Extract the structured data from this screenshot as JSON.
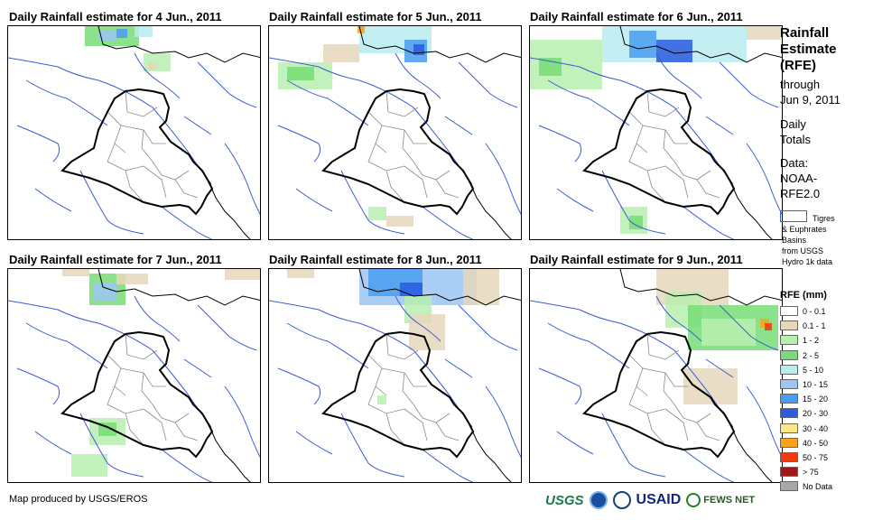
{
  "panels": [
    {
      "title": "Daily Rainfall estimate for 4 Jun., 2011"
    },
    {
      "title": "Daily Rainfall estimate for 5 Jun., 2011"
    },
    {
      "title": "Daily Rainfall estimate for 6 Jun., 2011"
    },
    {
      "title": "Daily Rainfall estimate for 7 Jun., 2011"
    },
    {
      "title": "Daily Rainfall estimate for 8 Jun., 2011"
    },
    {
      "title": "Daily Rainfall estimate for 9 Jun., 2011"
    }
  ],
  "sidebar": {
    "title_lines": [
      "Rainfall",
      "Estimate",
      "(RFE)"
    ],
    "through": "through",
    "through_date": "Jun 9, 2011",
    "totals_lines": [
      "Daily",
      "Totals"
    ],
    "data_lines": [
      "Data:",
      "NOAA-",
      "RFE2.0"
    ],
    "basin_lines": [
      "Tigres",
      "& Euphrates",
      "Basins",
      "from USGS",
      "Hydro 1k data"
    ]
  },
  "legend": {
    "title": "RFE (mm)",
    "items": [
      {
        "label": "0 - 0.1",
        "color": "#ffffff"
      },
      {
        "label": "0.1 - 1",
        "color": "#e6d7bb"
      },
      {
        "label": "1 - 2",
        "color": "#b8efb0"
      },
      {
        "label": "2 - 5",
        "color": "#77dd77"
      },
      {
        "label": "5 - 10",
        "color": "#b8ecf0"
      },
      {
        "label": "10 - 15",
        "color": "#9cc6f5"
      },
      {
        "label": "15 - 20",
        "color": "#4a9cf0"
      },
      {
        "label": "20 - 30",
        "color": "#2a5be0"
      },
      {
        "label": "30 - 40",
        "color": "#fde68a"
      },
      {
        "label": "40 - 50",
        "color": "#f9a21a"
      },
      {
        "label": "50 - 75",
        "color": "#f03a10"
      },
      {
        "label": "> 75",
        "color": "#a01818"
      },
      {
        "label": "No Data",
        "color": "#a8a8a8"
      }
    ]
  },
  "footer": {
    "credit": "Map produced by USGS/EROS",
    "logos": [
      "USGS",
      "NOAA",
      "DOI",
      "USAID",
      "FEWS NET"
    ]
  },
  "colors": {
    "country_border": "#000000",
    "province_border": "#8a8a8a",
    "basin_border": "#3b5bd6"
  }
}
